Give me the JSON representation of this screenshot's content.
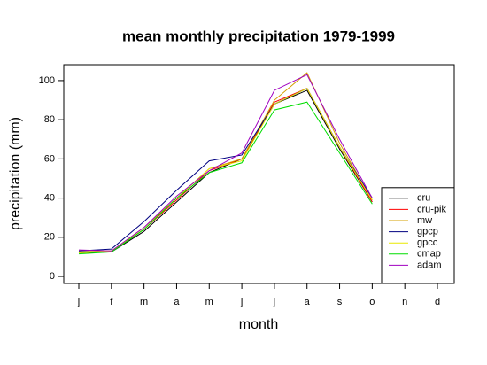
{
  "chart_data": {
    "type": "line",
    "title": "mean monthly precipitation 1979-1999",
    "x_label": "month",
    "y_label": "precipitation (mm)",
    "categories": [
      "j",
      "f",
      "m",
      "a",
      "m",
      "j",
      "j",
      "a",
      "s",
      "o",
      "n",
      "d"
    ],
    "ylim": [
      -3.6,
      108.1
    ],
    "yticks": [
      0,
      20,
      40,
      60,
      80,
      100
    ],
    "legend_position": "bottom-right",
    "series": [
      {
        "name": "cru",
        "color": "#000000",
        "values": [
          12,
          12.5,
          23,
          38,
          53,
          60,
          88,
          95,
          65,
          38,
          null,
          null
        ]
      },
      {
        "name": "cru-pik",
        "color": "#ff0000",
        "values": [
          12,
          13,
          24,
          39,
          54,
          60,
          89,
          96,
          66,
          38,
          null,
          null
        ]
      },
      {
        "name": "mw",
        "color": "#d4a000",
        "values": [
          13,
          13,
          25,
          40,
          55,
          60,
          90,
          104,
          68,
          39,
          null,
          null
        ]
      },
      {
        "name": "gpcp",
        "color": "#000080",
        "values": [
          13,
          14,
          28,
          44,
          59,
          62,
          88,
          96,
          66,
          40,
          null,
          null
        ]
      },
      {
        "name": "gpcc",
        "color": "#e8e800",
        "values": [
          12,
          13,
          24,
          40,
          55,
          59,
          88,
          96,
          66,
          39,
          null,
          null
        ]
      },
      {
        "name": "cmap",
        "color": "#00dd00",
        "values": [
          11.5,
          12.5,
          24,
          40,
          53,
          58,
          85,
          89,
          63,
          37,
          null,
          null
        ]
      },
      {
        "name": "adam",
        "color": "#a000c0",
        "values": [
          13.5,
          13,
          25,
          41,
          54,
          63,
          95,
          103,
          70,
          40,
          null,
          null
        ]
      }
    ]
  }
}
